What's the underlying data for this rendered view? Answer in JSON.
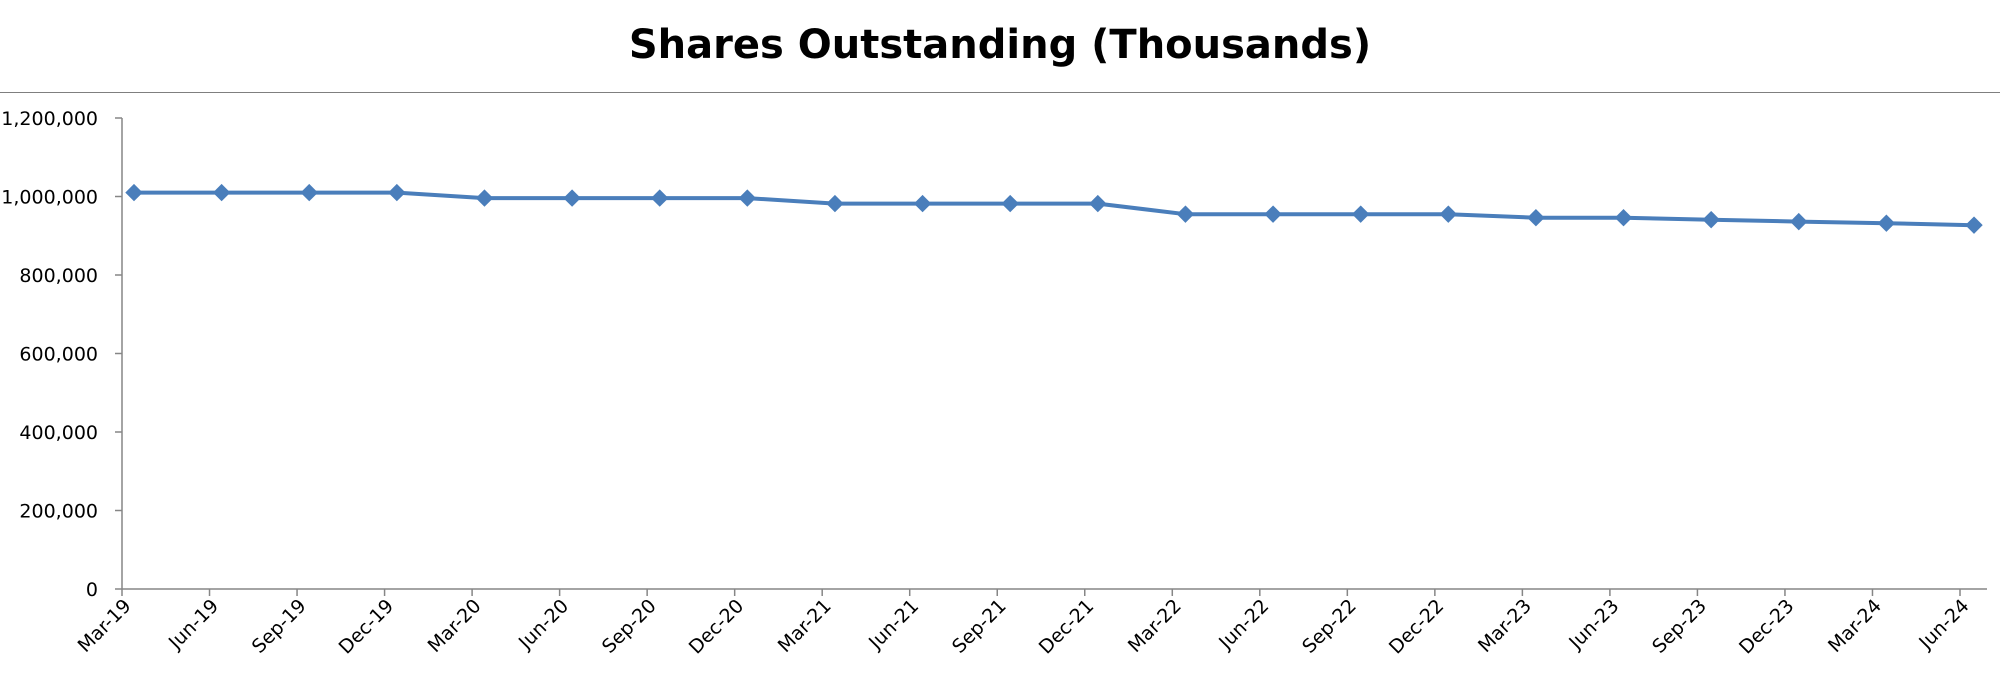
{
  "chart_data": {
    "type": "line",
    "title": "Shares Outstanding (Thousands)",
    "xlabel": "",
    "ylabel": "",
    "ylim": [
      0,
      1200000
    ],
    "yticks": [
      0,
      200000,
      400000,
      600000,
      800000,
      1000000,
      1200000
    ],
    "ytick_labels": [
      "0",
      "200,000",
      "400,000",
      "600,000",
      "800,000",
      "1,000,000",
      "1,200,000"
    ],
    "grid": false,
    "legend": "none",
    "categories": [
      "Mar-19",
      "Jun-19",
      "Sep-19",
      "Dec-19",
      "Mar-20",
      "Jun-20",
      "Sep-20",
      "Dec-20",
      "Mar-21",
      "Jun-21",
      "Sep-21",
      "Dec-21",
      "Mar-22",
      "Jun-22",
      "Sep-22",
      "Dec-22",
      "Mar-23",
      "Jun-23",
      "Sep-23",
      "Dec-23",
      "Mar-24",
      "Jun-24"
    ],
    "series": [
      {
        "color": "#4a7ebb",
        "marker": "diamond",
        "values": [
          1010000,
          1010000,
          1010000,
          1010000,
          996000,
          996000,
          996000,
          996000,
          982000,
          982000,
          982000,
          982000,
          955000,
          955000,
          955000,
          955000,
          946000,
          946000,
          941000,
          936000,
          932000,
          927000
        ]
      }
    ]
  },
  "colors": {
    "series_line": "#4a7ebb",
    "axis": "#868686",
    "title_rule": "#7f7f7f"
  }
}
